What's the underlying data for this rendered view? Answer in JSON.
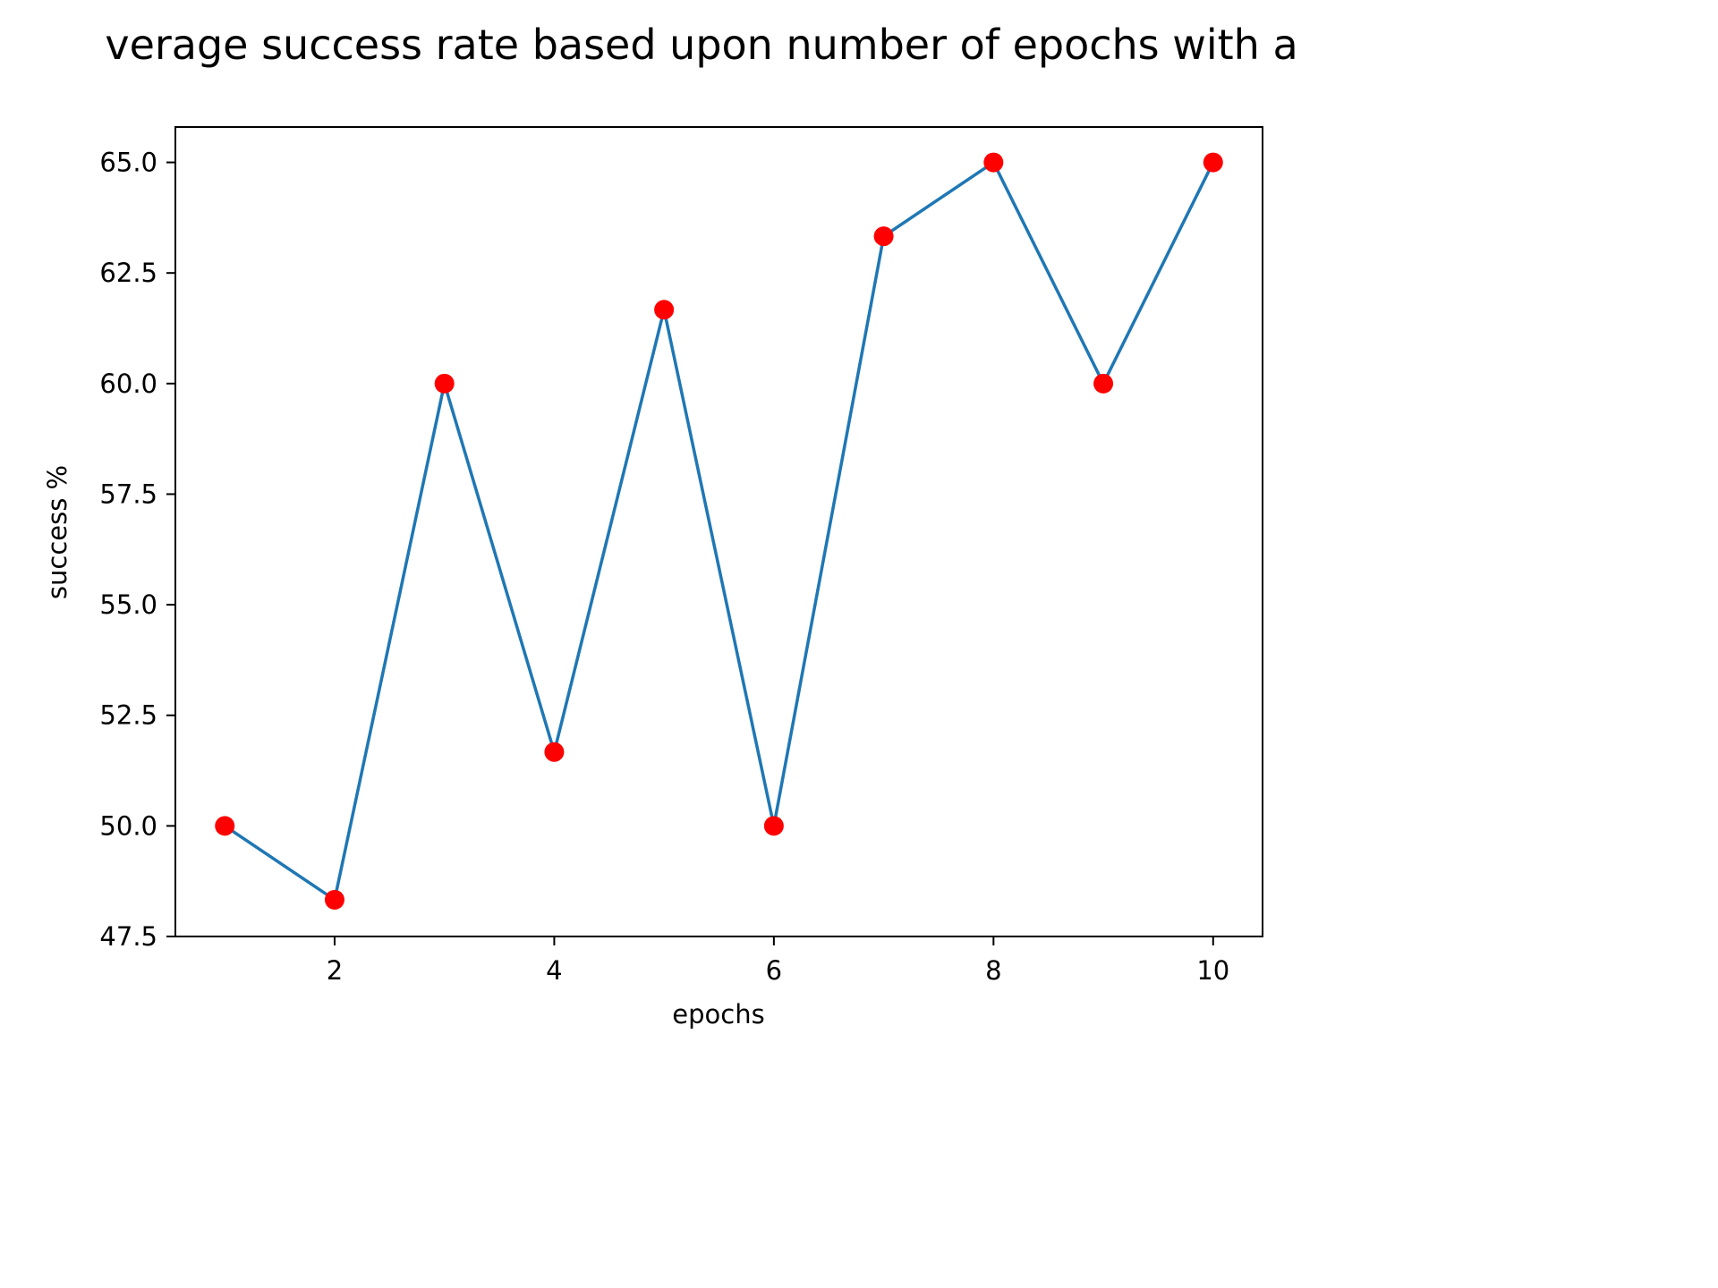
{
  "chart_data": {
    "type": "line",
    "title": "verage success rate based upon number of epochs with a",
    "xlabel": "epochs",
    "ylabel": "success %",
    "xlim": [
      0.55,
      10.45
    ],
    "ylim": [
      47.5,
      65.8
    ],
    "xticks": [
      2,
      4,
      6,
      8,
      10
    ],
    "xtick_labels": [
      "2",
      "4",
      "6",
      "8",
      "10"
    ],
    "yticks": [
      47.5,
      50.0,
      52.5,
      55.0,
      57.5,
      60.0,
      62.5,
      65.0
    ],
    "ytick_labels": [
      "47.5",
      "50.0",
      "52.5",
      "55.0",
      "57.5",
      "60.0",
      "62.5",
      "65.0"
    ],
    "grid": false,
    "x": [
      1,
      2,
      3,
      4,
      5,
      6,
      7,
      8,
      9,
      10
    ],
    "series": [
      {
        "values": [
          50.0,
          48.33,
          60.0,
          51.67,
          61.67,
          50.0,
          63.33,
          65.0,
          60.0,
          65.0
        ],
        "line_color": "#1f77b4",
        "marker_color": "#ff0000"
      }
    ]
  }
}
